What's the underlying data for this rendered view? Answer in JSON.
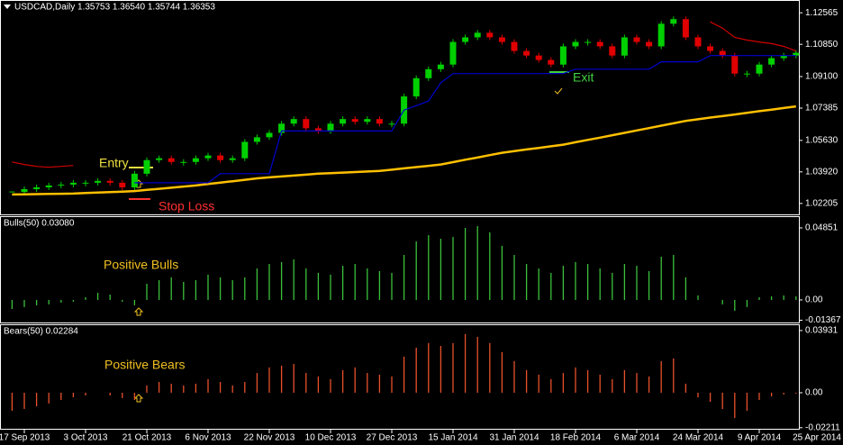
{
  "chart_data": [
    {
      "type": "candle",
      "title": "USDCAD,Daily  1.35753 1.36540 1.35744 1.36353",
      "up_color": "#00d000",
      "down_color": "#e00000",
      "values": [
        1.0283,
        1.0298,
        1.0308,
        1.0318,
        1.0323,
        1.0333,
        1.0333,
        1.0343,
        1.0333,
        1.0308,
        1.0382,
        1.0456,
        1.0466,
        1.0446,
        1.0446,
        1.0466,
        1.0481,
        1.0456,
        1.0466,
        1.0555,
        1.058,
        1.0604,
        1.0654,
        1.0679,
        1.0629,
        1.0614,
        1.0654,
        1.0679,
        1.0664,
        1.0679,
        1.0654,
        1.0654,
        1.0802,
        1.0901,
        1.095,
        1.0975,
        1.1098,
        1.1123,
        1.1148,
        1.1123,
        1.1098,
        1.1049,
        1.1024,
        1.1,
        1.0975,
        1.1074,
        1.1098,
        1.1098,
        1.1074,
        1.1024,
        1.1123,
        1.1098,
        1.1074,
        1.1197,
        1.1222,
        1.1123,
        1.1074,
        1.1049,
        1.1024,
        1.0926,
        1.0926,
        1.0975,
        1.101,
        1.1024,
        1.1039
      ],
      "lines": [
        {
          "color": "#ffc000",
          "values": [
            1.0269,
            1.027,
            1.0271,
            1.0272,
            1.0273,
            1.0274,
            1.0277,
            1.028,
            1.0282,
            1.0285,
            1.0288,
            1.0294,
            1.03,
            1.0306,
            1.0312,
            1.0318,
            1.0326,
            1.0334,
            1.0341,
            1.0349,
            1.0357,
            1.0362,
            1.0367,
            1.0372,
            1.0377,
            1.0382,
            1.0385,
            1.0388,
            1.0391,
            1.0394,
            1.0397,
            1.0404,
            1.0411,
            1.0418,
            1.0425,
            1.0432,
            1.0445,
            1.0458,
            1.047,
            1.0483,
            1.0496,
            1.0505,
            1.0514,
            1.0522,
            1.0531,
            1.054,
            1.0553,
            1.0566,
            1.0578,
            1.0591,
            1.0604,
            1.0617,
            1.063,
            1.0643,
            1.0656,
            1.0669,
            1.0678,
            1.0687,
            1.0695,
            1.0704,
            1.0713,
            1.0722,
            1.073,
            1.0739,
            1.0748
          ]
        },
        {
          "color": "#0000d0",
          "values": [
            null,
            null,
            null,
            null,
            null,
            null,
            null,
            null,
            null,
            null,
            1.0333,
            1.0333,
            1.0333,
            1.0333,
            1.0333,
            1.0333,
            1.0333,
            1.0382,
            1.0382,
            1.0382,
            1.0382,
            1.0382,
            1.0614,
            1.0614,
            1.0614,
            1.0614,
            1.0614,
            1.0614,
            1.0614,
            1.0614,
            1.0614,
            1.0614,
            1.0728,
            1.0752,
            1.0777,
            1.0876,
            1.0926,
            1.0926,
            1.0926,
            1.0926,
            1.0926,
            1.0926,
            1.0926,
            1.0926,
            1.0926,
            1.0926,
            1.095,
            1.095,
            1.095,
            1.095,
            1.095,
            1.095,
            1.095,
            1.099,
            1.099,
            1.099,
            1.099,
            1.1024,
            1.1024,
            1.1024,
            1.1024,
            1.1024,
            1.1024,
            1.1024,
            1.1024
          ]
        },
        {
          "color": "#d00000",
          "values": [
            1.0446,
            1.0432,
            1.0422,
            1.0417,
            1.0422,
            1.0427,
            null,
            null,
            null,
            null,
            null,
            null,
            null,
            null,
            null,
            null,
            null,
            null,
            null,
            null,
            null,
            null,
            null,
            null,
            null,
            null,
            null,
            null,
            null,
            null,
            null,
            null,
            null,
            null,
            null,
            null,
            null,
            null,
            null,
            null,
            null,
            null,
            null,
            null,
            null,
            null,
            null,
            null,
            null,
            null,
            null,
            null,
            null,
            null,
            null,
            null,
            null,
            1.1207,
            1.1173,
            1.1123,
            1.1108,
            1.1098,
            1.1089,
            1.1074,
            1.1049
          ]
        }
      ],
      "ylim": [
        1.0161,
        1.1321
      ],
      "yticks": [
        {
          "value": 1.12565,
          "label": "1.12565"
        },
        {
          "value": 1.1085,
          "label": "1.10850"
        },
        {
          "value": 1.091,
          "label": "1.09100"
        },
        {
          "value": 1.07385,
          "label": "1.07385"
        },
        {
          "value": 1.0563,
          "label": "1.05630"
        },
        {
          "value": 1.0392,
          "label": "1.03920"
        },
        {
          "value": 1.02205,
          "label": "1.02205"
        }
      ],
      "annotations": {
        "entry": "Entry",
        "stop": "Stop Loss",
        "exit": "Exit"
      }
    },
    {
      "type": "bar",
      "title": "Bulls(50) 0.03080",
      "color": "#3cc03c",
      "annotation": "Positive Bulls",
      "values": [
        -0.0061,
        -0.0048,
        -0.0036,
        -0.003,
        -0.0018,
        -0.0012,
        0.0018,
        0.0048,
        0.0036,
        -0.0012,
        -0.0036,
        0.0109,
        0.0133,
        0.0152,
        0.0121,
        0.0133,
        0.017,
        0.0152,
        0.0133,
        0.0152,
        0.0212,
        0.0242,
        0.0255,
        0.0273,
        0.0212,
        0.0182,
        0.017,
        0.023,
        0.0242,
        0.0212,
        0.0194,
        0.0182,
        0.0303,
        0.0394,
        0.0436,
        0.0412,
        0.0424,
        0.0485,
        0.0497,
        0.0455,
        0.0364,
        0.0303,
        0.0242,
        0.0212,
        0.0182,
        0.023,
        0.0255,
        0.0242,
        0.0212,
        0.0182,
        0.0242,
        0.023,
        0.0194,
        0.0291,
        0.0303,
        0.0152,
        0.003,
        0,
        -0.003,
        -0.0073,
        -0.0048,
        0.0018,
        0.0024,
        0.003,
        0.0024
      ],
      "ylim": [
        -0.0152,
        0.0558
      ],
      "yticks": [
        0.04851,
        {
          "value": 0,
          "label": "0.00"
        },
        -0.01367
      ]
    },
    {
      "type": "bar",
      "title": "Bears(50) 0.02284",
      "color": "#e8502a",
      "annotation": "Positive Bears",
      "values": [
        -0.0114,
        -0.0103,
        -0.0086,
        -0.0068,
        -0.0046,
        -0.0029,
        -0.0017,
        0,
        -0.0017,
        -0.0034,
        -0.0046,
        0.0046,
        0.0068,
        0.0057,
        0.0046,
        0.0057,
        0.0086,
        0.0068,
        0.0046,
        0.0068,
        0.0125,
        0.016,
        0.0171,
        0.0182,
        0.0125,
        0.0103,
        0.0086,
        0.0143,
        0.016,
        0.0125,
        0.0114,
        0.0103,
        0.0228,
        0.0285,
        0.0314,
        0.0296,
        0.0314,
        0.0371,
        0.0353,
        0.0314,
        0.0257,
        0.02,
        0.0143,
        0.0114,
        0.0086,
        0.0125,
        0.016,
        0.0143,
        0.0114,
        0.0086,
        0.0143,
        0.0125,
        0.0103,
        0.02,
        0.0217,
        0.0057,
        -0.0029,
        -0.0057,
        -0.0103,
        -0.016,
        -0.0114,
        -0.0046,
        -0.0023,
        -0.0011,
        -0.0006
      ],
      "ylim": [
        -0.0228,
        0.0427
      ],
      "yticks": [
        0.03931,
        {
          "value": 0,
          "label": "0.00"
        },
        -0.02211
      ],
      "categories": [
        null,
        "17 Sep 2013",
        null,
        null,
        null,
        null,
        "3 Oct 2013",
        null,
        null,
        null,
        null,
        "21 Oct 2013",
        null,
        null,
        null,
        null,
        "6 Nov 2013",
        null,
        null,
        null,
        null,
        "22 Nov 2013",
        null,
        null,
        null,
        null,
        "10 Dec 2013",
        null,
        null,
        null,
        null,
        "27 Dec 2013",
        null,
        null,
        null,
        null,
        "15 Jan 2014",
        null,
        null,
        null,
        null,
        "31 Jan 2014",
        null,
        null,
        null,
        null,
        "18 Feb 2014",
        null,
        null,
        null,
        null,
        "6 Mar 2014",
        null,
        null,
        null,
        null,
        "24 Mar 2014",
        null,
        null,
        null,
        null,
        "9 Apr 2014",
        null,
        null,
        null
      ],
      "x_end_label": "25 Apr 2014"
    }
  ]
}
